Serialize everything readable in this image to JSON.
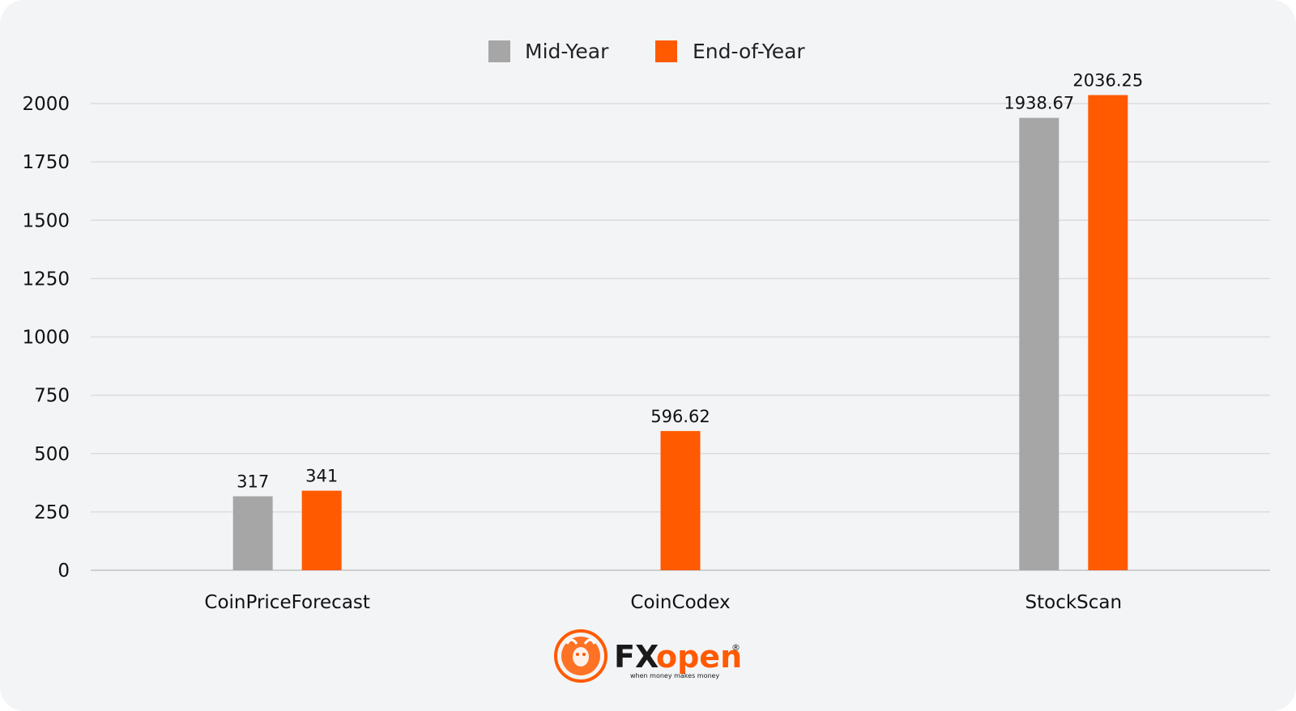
{
  "chart_data": {
    "type": "bar",
    "categories": [
      "CoinPriceForecast",
      "CoinCodex",
      "StockScan"
    ],
    "series": [
      {
        "name": "Mid-Year",
        "values": [
          317,
          null,
          1938.67
        ],
        "labels": [
          "317",
          "",
          "1938.67"
        ],
        "color": "#a6a6a6"
      },
      {
        "name": "End-of-Year",
        "values": [
          341,
          596.62,
          2036.25
        ],
        "labels": [
          "341",
          "596.62",
          "2036.25"
        ],
        "color": "#ff5a00"
      }
    ],
    "ylim": [
      0,
      2000
    ],
    "yticks": [
      "0",
      "250",
      "500",
      "750",
      "1000",
      "1250",
      "1500",
      "1750",
      "2000"
    ],
    "grid": true,
    "legend_position": "top-center",
    "title": "",
    "xlabel": "",
    "ylabel": ""
  },
  "brand": {
    "logo_text_fx": "FX",
    "logo_text_open": "open",
    "tagline": "when money makes money",
    "registered": "®",
    "colors": {
      "dark": "#1a1a1a",
      "accent": "#ff5a00"
    }
  }
}
